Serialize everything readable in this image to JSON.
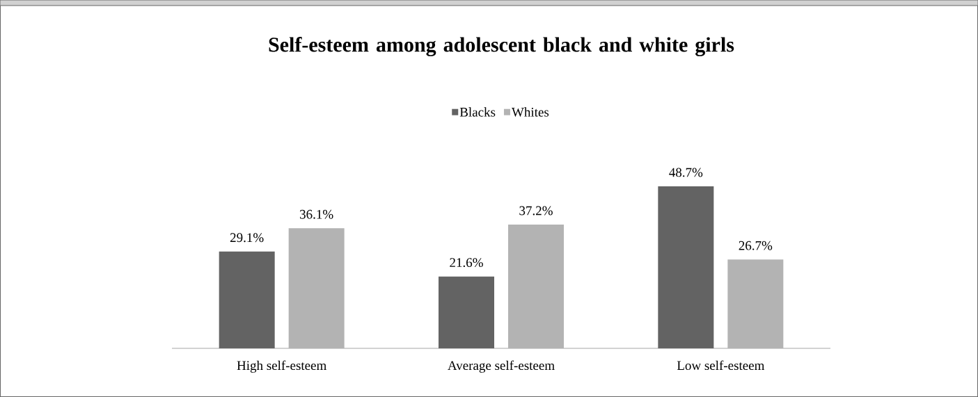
{
  "chart_data": {
    "type": "bar",
    "title": "Self-esteem among adolescent black and white girls",
    "categories": [
      "High self-esteem",
      "Average self-esteem",
      "Low self-esteem"
    ],
    "series": [
      {
        "name": "Blacks",
        "color": "#636363",
        "values": [
          29.1,
          21.6,
          48.7
        ],
        "value_labels": [
          "29.1%",
          "21.6%",
          "48.7%"
        ]
      },
      {
        "name": "Whites",
        "color": "#b3b3b3",
        "values": [
          36.1,
          37.2,
          26.7
        ],
        "value_labels": [
          "36.1%",
          "37.2%",
          "26.7%"
        ]
      }
    ],
    "legend": "top"
  }
}
